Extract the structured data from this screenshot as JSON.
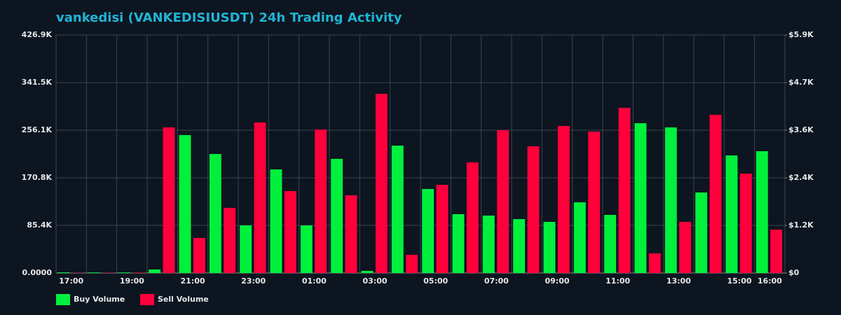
{
  "chart_data": {
    "type": "bar",
    "title": "vankedisi (VANKEDISIUSDT) 24h Trading Activity",
    "categories": [
      "17:00",
      null,
      "19:00",
      null,
      "21:00",
      null,
      "23:00",
      null,
      "01:00",
      null,
      "03:00",
      null,
      "05:00",
      null,
      "07:00",
      null,
      "09:00",
      null,
      "11:00",
      null,
      "13:00",
      null,
      "15:00",
      "16:00"
    ],
    "series": [
      {
        "name": "Buy Volume",
        "color": "#00f03c",
        "values": [
          1200,
          1000,
          1000,
          6300,
          247400,
          213500,
          85400,
          185800,
          85400,
          204700,
          3800,
          228500,
          150700,
          105500,
          103000,
          96700,
          91700,
          126800,
          104200,
          268700,
          261200,
          144400,
          210900,
          218500
        ]
      },
      {
        "name": "Sell Volume",
        "color": "#ff003c",
        "values": [
          500,
          500,
          800,
          261200,
          62800,
          116800,
          270000,
          146900,
          257400,
          139400,
          321400,
          32600,
          158200,
          198400,
          256100,
          227300,
          263700,
          253600,
          296300,
          35200,
          91700,
          283800,
          178300,
          77800
        ]
      }
    ],
    "ylim": [
      0,
      426900
    ],
    "yticks": [
      {
        "value": 0,
        "label": "0.0000"
      },
      {
        "value": 85380,
        "label": "85.4K"
      },
      {
        "value": 170760,
        "label": "170.8K"
      },
      {
        "value": 256140,
        "label": "256.1K"
      },
      {
        "value": 341520,
        "label": "341.5K"
      },
      {
        "value": 426900,
        "label": "426.9K"
      }
    ],
    "y2lim": [
      0,
      5930
    ],
    "y2ticks": [
      {
        "value": 0,
        "label": "$0"
      },
      {
        "value": 1186,
        "label": "$1.2K"
      },
      {
        "value": 2372,
        "label": "$2.4K"
      },
      {
        "value": 3558,
        "label": "$3.6K"
      },
      {
        "value": 4744,
        "label": "$4.7K"
      },
      {
        "value": 5930,
        "label": "$5.9K"
      }
    ],
    "grid": true,
    "legend": "bottom-left"
  }
}
